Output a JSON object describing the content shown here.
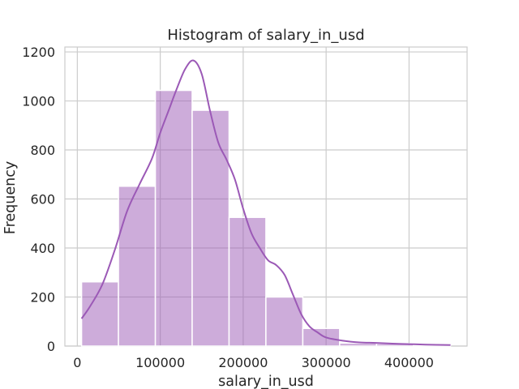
{
  "chart_data": {
    "type": "bar",
    "title": "Histogram of salary_in_usd",
    "xlabel": "salary_in_usd",
    "ylabel": "Frequency",
    "xlim": [
      -15000,
      470000
    ],
    "ylim": [
      0,
      1220
    ],
    "xticks": [
      0,
      100000,
      200000,
      300000,
      400000
    ],
    "xtick_labels": [
      "0",
      "100000",
      "200000",
      "300000",
      "400000"
    ],
    "yticks": [
      0,
      200,
      400,
      600,
      800,
      1000,
      1200
    ],
    "ytick_labels": [
      "0",
      "200",
      "400",
      "600",
      "800",
      "1000",
      "1200"
    ],
    "grid": true,
    "bar_color": "#9b59b6",
    "bins": [
      {
        "start": 5132,
        "end": 49600,
        "count": 262
      },
      {
        "start": 49600,
        "end": 94100,
        "count": 652
      },
      {
        "start": 94100,
        "end": 138500,
        "count": 1043
      },
      {
        "start": 138500,
        "end": 183000,
        "count": 962
      },
      {
        "start": 183000,
        "end": 227400,
        "count": 525
      },
      {
        "start": 227400,
        "end": 271900,
        "count": 200
      },
      {
        "start": 271900,
        "end": 316300,
        "count": 72
      },
      {
        "start": 316300,
        "end": 360800,
        "count": 12
      },
      {
        "start": 360800,
        "end": 405200,
        "count": 10
      },
      {
        "start": 405200,
        "end": 450000,
        "count": 5
      }
    ],
    "kde": {
      "x": [
        5132,
        15000,
        30000,
        45000,
        60000,
        75000,
        90000,
        100000,
        110000,
        120000,
        130000,
        140000,
        150000,
        160000,
        170000,
        180000,
        190000,
        200000,
        210000,
        220000,
        230000,
        240000,
        250000,
        260000,
        270000,
        280000,
        290000,
        300000,
        320000,
        340000,
        360000,
        380000,
        400000,
        420000,
        450000
      ],
      "y": [
        112,
        160,
        250,
        390,
        550,
        660,
        765,
        870,
        960,
        1050,
        1130,
        1165,
        1110,
        960,
        830,
        760,
        680,
        560,
        460,
        400,
        350,
        330,
        290,
        210,
        130,
        80,
        55,
        35,
        22,
        15,
        13,
        10,
        8,
        6,
        4
      ]
    }
  }
}
